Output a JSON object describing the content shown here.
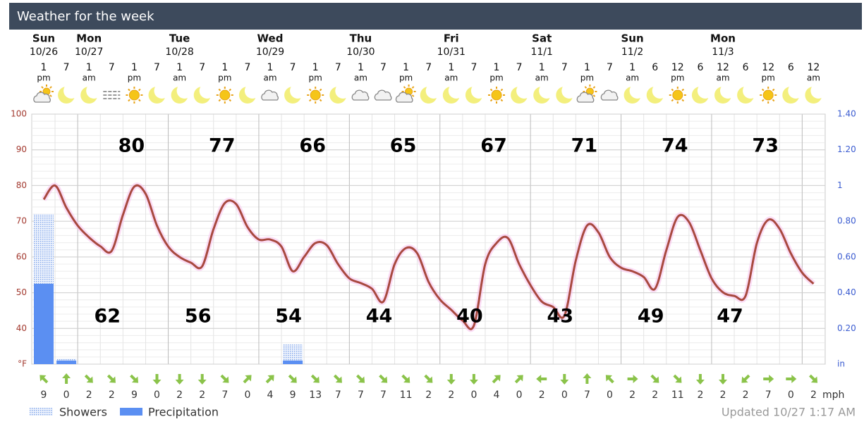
{
  "chart_data": {
    "type": "line",
    "title": "Weather for the week",
    "updated": "Updated 10/27 1:17 AM",
    "days": [
      {
        "name": "Sun",
        "date": "10/26"
      },
      {
        "name": "Mon",
        "date": "10/27"
      },
      {
        "name": "Tue",
        "date": "10/28"
      },
      {
        "name": "Wed",
        "date": "10/29"
      },
      {
        "name": "Thu",
        "date": "10/30"
      },
      {
        "name": "Fri",
        "date": "10/31"
      },
      {
        "name": "Sat",
        "date": "11/1"
      },
      {
        "name": "Sun",
        "date": "11/2"
      },
      {
        "name": "Mon",
        "date": "11/3"
      }
    ],
    "hours": [
      "1",
      "7",
      "1",
      "7",
      "1",
      "7",
      "1",
      "7",
      "1",
      "7",
      "1",
      "7",
      "1",
      "7",
      "1",
      "7",
      "1",
      "7",
      "1",
      "7",
      "1",
      "7",
      "1",
      "7",
      "1",
      "7",
      "1",
      "6",
      "12",
      "6",
      "12",
      "6",
      "12",
      "6",
      "12"
    ],
    "periods": [
      "pm",
      null,
      "am",
      null,
      "pm",
      null,
      "am",
      null,
      "pm",
      null,
      "am",
      null,
      "pm",
      null,
      "am",
      null,
      "pm",
      null,
      "am",
      null,
      "pm",
      null,
      "am",
      null,
      "pm",
      null,
      "am",
      null,
      "pm",
      null,
      "am",
      null,
      "pm",
      null,
      "am"
    ],
    "conditions": [
      "sun-cloud",
      "moon",
      "moon",
      "fog",
      "sun",
      "moon",
      "moon",
      "moon",
      "sun",
      "moon",
      "cloud",
      "moon",
      "sun",
      "moon",
      "cloud",
      "cloud",
      "sun-cloud",
      "moon",
      "moon",
      "moon",
      "sun",
      "moon",
      "moon",
      "moon",
      "sun-cloud",
      "cloud",
      "moon",
      "moon",
      "sun",
      "moon",
      "moon",
      "moon",
      "sun",
      "moon",
      "moon"
    ],
    "temperature": {
      "color": "#a8493f",
      "x": [
        0,
        0.5,
        1,
        1.5,
        2,
        2.5,
        3,
        3.5,
        4,
        4.5,
        5,
        5.5,
        6,
        6.5,
        7,
        7.5,
        8,
        8.5,
        9,
        9.5,
        10,
        10.5,
        11,
        11.5,
        12,
        12.5,
        13,
        13.5,
        14,
        14.5,
        15,
        15.5,
        16,
        16.5,
        17,
        17.5,
        18,
        18.5,
        19,
        19.5,
        20,
        20.5,
        21,
        21.5,
        22,
        22.5,
        23,
        23.5,
        24,
        24.5,
        25,
        25.5,
        26,
        26.5,
        27,
        27.5,
        28,
        28.5,
        29,
        29.5,
        30,
        30.5,
        31,
        31.5,
        32,
        32.5,
        33,
        33.5,
        34
      ],
      "values": [
        76.1,
        80,
        73.8,
        68.8,
        65.5,
        63,
        61.7,
        71.8,
        79.7,
        77.7,
        68.8,
        62.9,
        60,
        58.4,
        57.4,
        67.8,
        75.1,
        74.8,
        68.4,
        64.9,
        64.9,
        62.9,
        56,
        60,
        63.9,
        63.3,
        58,
        54,
        52.7,
        51.1,
        47.5,
        58,
        62.5,
        61,
        53,
        48.1,
        45.2,
        42.2,
        40.8,
        58,
        63.9,
        65.3,
        58,
        52.1,
        47.5,
        46,
        43.6,
        59,
        68.8,
        66.9,
        60,
        57,
        56,
        54.4,
        51.1,
        61.9,
        71.2,
        69.8,
        61.9,
        54,
        50.1,
        49.1,
        49.1,
        63.9,
        70.4,
        67.9,
        61,
        55.6,
        52.5
      ]
    },
    "highs": [
      80,
      77,
      66,
      65,
      67,
      71,
      74,
      73
    ],
    "lows": [
      62,
      56,
      54,
      44,
      40,
      43,
      49,
      47
    ],
    "series": [
      {
        "name": "Showers",
        "color": "#9dbcf2",
        "axis": "y2",
        "values": [
          0.84,
          0.03,
          null,
          null,
          null,
          null,
          null,
          null,
          null,
          null,
          null,
          0.11,
          null,
          null,
          null,
          null,
          null,
          null,
          null,
          null,
          null,
          null,
          null,
          null,
          null,
          null,
          null,
          null,
          null,
          null,
          null,
          null,
          null,
          null,
          null
        ]
      },
      {
        "name": "Precipitation",
        "color": "#5b8ff2",
        "axis": "y2",
        "values": [
          0.45,
          0.02,
          null,
          null,
          null,
          null,
          null,
          null,
          null,
          null,
          null,
          0.02,
          null,
          null,
          null,
          null,
          null,
          null,
          null,
          null,
          null,
          null,
          null,
          null,
          null,
          null,
          null,
          null,
          null,
          null,
          null,
          null,
          null,
          null,
          null
        ]
      }
    ],
    "xlim": [
      0,
      34
    ],
    "ylim": [
      30,
      100
    ],
    "yticks": [
      {
        "value": 30,
        "label": "°F"
      },
      40,
      50,
      60,
      70,
      80,
      90,
      100
    ],
    "y2lim": [
      0,
      1.4
    ],
    "y2ticks": [
      {
        "value": 0,
        "label": "in"
      },
      {
        "value": 0.2,
        "label": "0.20"
      },
      {
        "value": 0.4,
        "label": "0.40"
      },
      {
        "value": 0.6,
        "label": "0.60"
      },
      {
        "value": 0.8,
        "label": "0.80"
      },
      1,
      {
        "value": 1.2,
        "label": "1.20"
      },
      {
        "value": 1.4,
        "label": "1.40"
      }
    ],
    "grid": true,
    "wind_speeds": [
      9,
      0,
      2,
      2,
      9,
      0,
      2,
      2,
      7,
      0,
      4,
      9,
      13,
      7,
      7,
      7,
      11,
      2,
      2,
      0,
      4,
      0,
      2,
      0,
      7,
      0,
      2,
      2,
      11,
      2,
      2,
      2,
      7,
      0,
      2
    ],
    "wind_directions": [
      315,
      0,
      135,
      135,
      135,
      180,
      180,
      180,
      135,
      45,
      45,
      135,
      135,
      135,
      135,
      135,
      135,
      135,
      180,
      180,
      45,
      45,
      270,
      180,
      0,
      315,
      90,
      135,
      135,
      180,
      180,
      225,
      90,
      90,
      135
    ],
    "wind_unit": "mph",
    "wind_color": "#8bc34a"
  }
}
